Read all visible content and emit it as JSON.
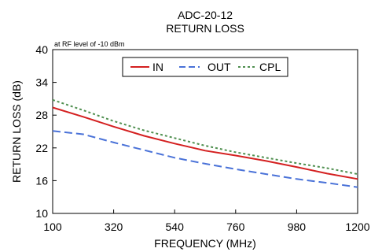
{
  "chart_data": {
    "type": "line",
    "title": "ADC-20-12",
    "subtitle": "RETURN LOSS",
    "annotation": "at RF level of -10 dBm",
    "xlabel": "FREQUENCY (MHz)",
    "ylabel": "RETURN LOSS (dB)",
    "xlim": [
      100,
      1200
    ],
    "ylim": [
      10,
      40
    ],
    "xticks": [
      100,
      320,
      540,
      760,
      980,
      1200
    ],
    "yticks": [
      10,
      16,
      22,
      28,
      34,
      40
    ],
    "grid": false,
    "legend_position": "top-center",
    "series": [
      {
        "name": "IN",
        "color": "#d42020",
        "dash": "solid",
        "x": [
          100,
          210,
          320,
          430,
          540,
          650,
          760,
          870,
          980,
          1090,
          1200
        ],
        "y": [
          29.4,
          27.7,
          25.9,
          24.2,
          22.8,
          21.5,
          20.6,
          19.6,
          18.5,
          17.3,
          16.3
        ]
      },
      {
        "name": "OUT",
        "color": "#4a72d8",
        "dash": "dashed",
        "x": [
          100,
          210,
          320,
          430,
          540,
          650,
          760,
          870,
          980,
          1090,
          1200
        ],
        "y": [
          25.1,
          24.5,
          23.0,
          21.6,
          20.2,
          19.1,
          18.1,
          17.2,
          16.3,
          15.6,
          14.8
        ]
      },
      {
        "name": "CPL",
        "color": "#4f8f4f",
        "dash": "dotted",
        "x": [
          100,
          210,
          320,
          430,
          540,
          650,
          760,
          870,
          980,
          1090,
          1200
        ],
        "y": [
          30.8,
          28.9,
          26.9,
          25.2,
          23.8,
          22.4,
          21.2,
          20.2,
          19.2,
          18.3,
          17.2
        ]
      }
    ]
  }
}
